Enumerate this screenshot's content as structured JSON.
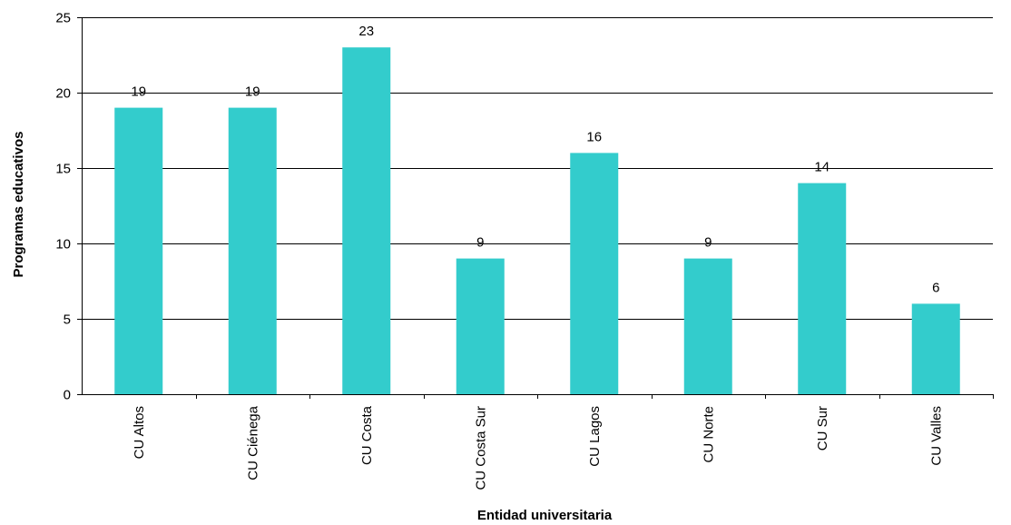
{
  "chart_data": {
    "type": "bar",
    "title": "",
    "xlabel": "Entidad universitaria",
    "ylabel": "Programas educativos",
    "categories": [
      "CU Altos",
      "CU Ciénega",
      "CU Costa",
      "CU Costa Sur",
      "CU Lagos",
      "CU Norte",
      "CU Sur",
      "CU Valles"
    ],
    "values": [
      19,
      19,
      23,
      9,
      16,
      9,
      14,
      6
    ],
    "ylim": [
      0,
      25
    ],
    "yticks": [
      0,
      5,
      10,
      15,
      20,
      25
    ],
    "grid": true,
    "legend": "none",
    "colors": {
      "bar": "#33CCCC",
      "grid": "#000000",
      "axis": "#000000"
    }
  }
}
